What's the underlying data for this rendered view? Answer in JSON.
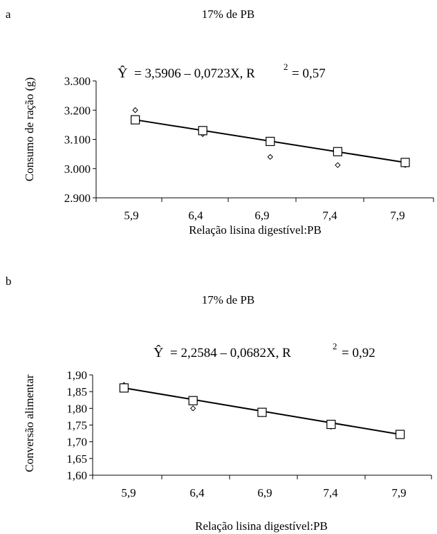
{
  "chart_data": [
    {
      "panel_letter": "a",
      "type": "scatter",
      "title": "17% de PB",
      "xlabel": "Relação lisina digestível:PB",
      "ylabel": "Consumo de ração (g)",
      "x_ticks": [
        "5,9",
        "6,4",
        "6,9",
        "7,4",
        "7,9"
      ],
      "y_ticks": [
        "2.900",
        "3.000",
        "3.100",
        "3.200",
        "3.300"
      ],
      "xlim": [
        5.6,
        8.1
      ],
      "ylim": [
        2900,
        3300
      ],
      "equation": {
        "yhat": "Ŷ",
        "rhs": "= 3,5906 – 0,0723X, R",
        "sup": "2",
        "tail": "= 0,57"
      },
      "series": [
        {
          "marker": "diamond",
          "x": [
            5.89,
            6.39,
            6.89,
            7.39,
            7.89
          ],
          "y": [
            3200,
            3118,
            3040,
            3012,
            3012
          ]
        },
        {
          "marker": "square",
          "x": [
            5.89,
            6.39,
            6.89,
            7.39,
            7.89
          ],
          "y": [
            3167,
            3130,
            3093,
            3058,
            3021
          ]
        }
      ],
      "grid": false
    },
    {
      "panel_letter": "b",
      "type": "scatter",
      "title": "17% de PB",
      "xlabel": "Relação lisina digestível:PB",
      "ylabel": "Conversão alimentar",
      "x_ticks": [
        "5,9",
        "6,4",
        "6,9",
        "7,4",
        "7,9"
      ],
      "y_ticks": [
        "1,60",
        "1,65",
        "1,70",
        "1,75",
        "1,80",
        "1,85",
        "1,90"
      ],
      "xlim": [
        5.4,
        8.1
      ],
      "ylim": [
        1.6,
        1.9
      ],
      "equation": {
        "yhat": "Ŷ",
        "rhs": "= 2,2584 – 0,0682X, R",
        "sup": "2",
        "tail": "= 0,92"
      },
      "series": [
        {
          "marker": "diamond",
          "x": [
            5.65,
            6.2,
            6.75,
            7.3,
            7.85
          ],
          "y": [
            1.87,
            1.8,
            1.787,
            1.745,
            1.727
          ]
        },
        {
          "marker": "square",
          "x": [
            5.65,
            6.2,
            6.75,
            7.3,
            7.85
          ],
          "y": [
            1.861,
            1.823,
            1.788,
            1.752,
            1.722
          ]
        }
      ],
      "grid": false
    }
  ]
}
